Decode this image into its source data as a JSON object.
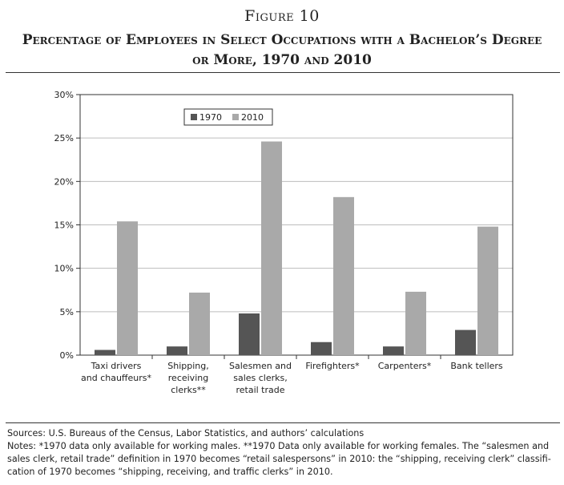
{
  "figure_label": "Figure 10",
  "figure_title": "Percentage of Employees in Select Occupations with a Bachelor’s Degree or More, 1970 and 2010",
  "colors": {
    "series_1970": "#555555",
    "series_2010": "#a9a9a9",
    "axis": "#333333",
    "grid": "#bdbdbd"
  },
  "chart_data": {
    "type": "bar",
    "title": "",
    "xlabel": "",
    "ylabel": "",
    "ylim": [
      0,
      30
    ],
    "yticks": [
      0,
      5,
      10,
      15,
      20,
      25,
      30
    ],
    "ytick_labels": [
      "0%",
      "5%",
      "10%",
      "15%",
      "20%",
      "25%",
      "30%"
    ],
    "grid": true,
    "legend_position": "top-center",
    "categories": [
      [
        "Taxi drivers",
        "and chauffeurs*"
      ],
      [
        "Shipping,",
        "receiving",
        "clerks**"
      ],
      [
        "Salesmen and",
        "sales clerks,",
        "retail trade"
      ],
      [
        "Firefighters*"
      ],
      [
        "Carpenters*"
      ],
      [
        "Bank tellers"
      ]
    ],
    "series": [
      {
        "name": "1970",
        "values": [
          0.6,
          1.0,
          4.8,
          1.5,
          1.0,
          2.9
        ]
      },
      {
        "name": "2010",
        "values": [
          15.4,
          7.2,
          24.6,
          18.2,
          7.3,
          14.8
        ]
      }
    ]
  },
  "sources": "Sources: U.S. Bureaus of the Census, Labor Statistics, and authors’ calculations",
  "notes": [
    "Notes: *1970 data only available for working males. **1970 Data only available for working females. The “salesmen and",
    "sales clerk, retail trade” definition in 1970 becomes “retail salespersons” in 2010: the “shipping, receiving clerk” classifi-",
    "cation of 1970 becomes “shipping, receiving, and traffic clerks” in 2010."
  ]
}
